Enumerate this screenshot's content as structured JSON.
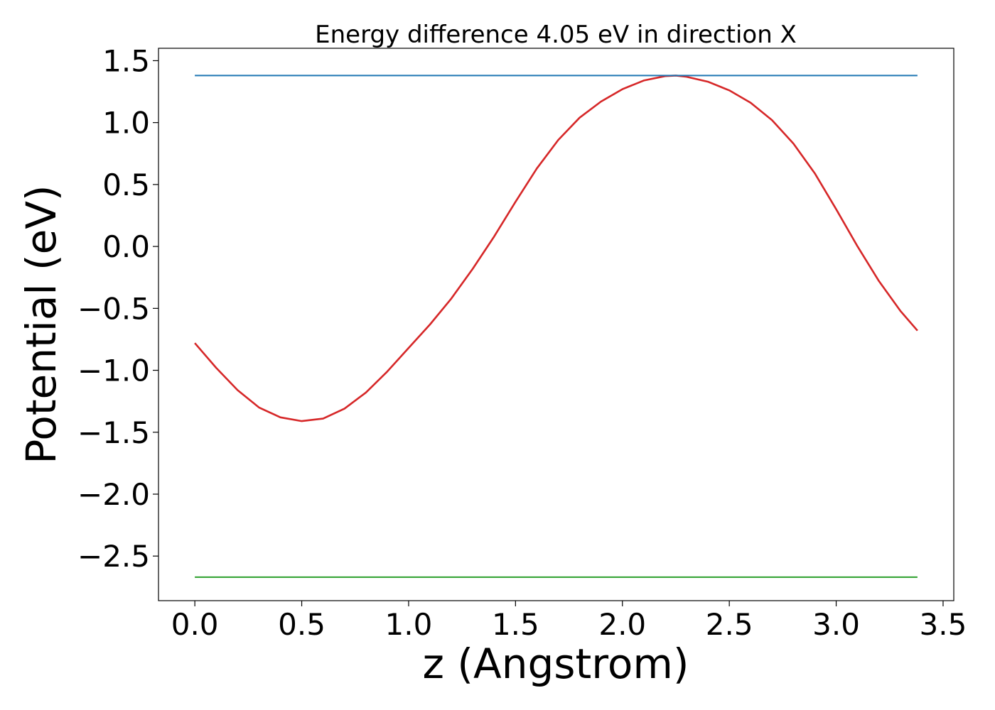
{
  "chart_data": {
    "type": "line",
    "title": "Energy difference 4.05 eV in direction X",
    "xlabel": "z (Angstrom)",
    "ylabel": "Potential (eV)",
    "xlim": [
      -0.17,
      3.55
    ],
    "ylim": [
      -2.86,
      1.6
    ],
    "xticks": [
      0.0,
      0.5,
      1.0,
      1.5,
      2.0,
      2.5,
      3.0,
      3.5
    ],
    "xtick_labels": [
      "0.0",
      "0.5",
      "1.0",
      "1.5",
      "2.0",
      "2.5",
      "3.0",
      "3.5"
    ],
    "yticks": [
      1.5,
      1.0,
      0.5,
      0.0,
      -0.5,
      -1.0,
      -1.5,
      -2.0,
      -2.5
    ],
    "ytick_labels": [
      "1.5",
      "1.0",
      "0.5",
      "0.0",
      "−0.5",
      "−1.0",
      "−1.5",
      "−2.0",
      "−2.5"
    ],
    "grid": false,
    "series": [
      {
        "color": "#d62728",
        "x": [
          0.0,
          0.1,
          0.2,
          0.3,
          0.4,
          0.5,
          0.6,
          0.7,
          0.8,
          0.9,
          1.0,
          1.1,
          1.2,
          1.3,
          1.4,
          1.5,
          1.6,
          1.7,
          1.8,
          1.9,
          2.0,
          2.1,
          2.2,
          2.25,
          2.3,
          2.4,
          2.5,
          2.6,
          2.7,
          2.8,
          2.9,
          3.0,
          3.1,
          3.2,
          3.3,
          3.38
        ],
        "y": [
          -0.78,
          -0.98,
          -1.16,
          -1.3,
          -1.38,
          -1.41,
          -1.39,
          -1.31,
          -1.18,
          -1.01,
          -0.82,
          -0.63,
          -0.42,
          -0.18,
          0.08,
          0.36,
          0.63,
          0.86,
          1.04,
          1.17,
          1.27,
          1.34,
          1.375,
          1.38,
          1.37,
          1.33,
          1.26,
          1.16,
          1.02,
          0.83,
          0.59,
          0.3,
          0.0,
          -0.28,
          -0.52,
          -0.68
        ]
      },
      {
        "color": "#1f77b4",
        "x": [
          0.0,
          3.38
        ],
        "y": [
          1.38,
          1.38
        ]
      },
      {
        "color": "#2ca02c",
        "x": [
          0.0,
          3.38
        ],
        "y": [
          -2.67,
          -2.67
        ]
      }
    ]
  }
}
